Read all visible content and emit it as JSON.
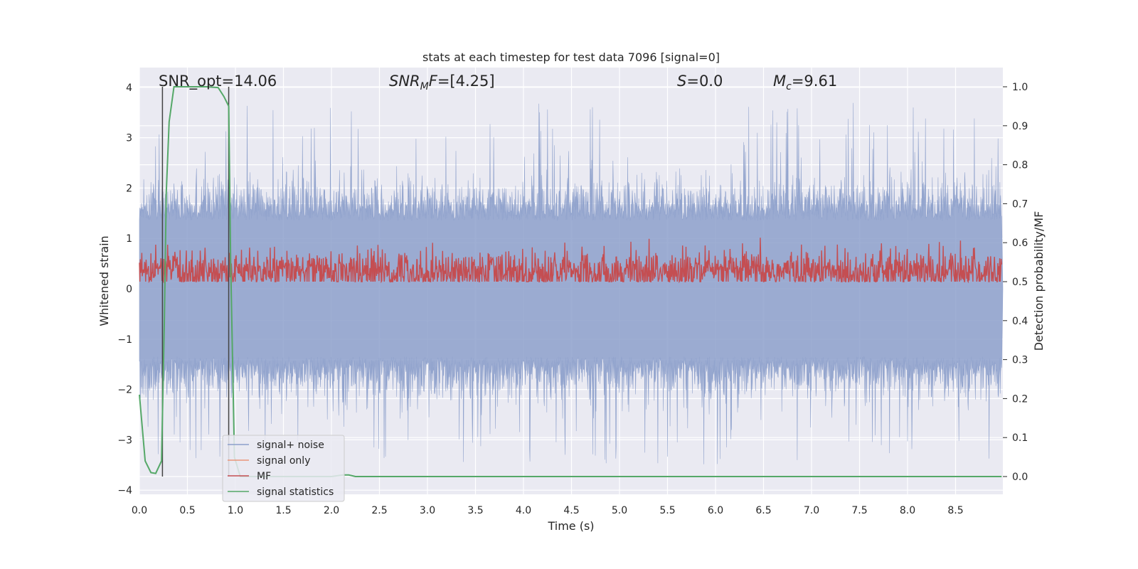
{
  "chart_data": {
    "type": "line",
    "title": "stats at each timestep for test data 7096 [signal=0]",
    "xlabel": "Time (s)",
    "ylabel": "Whitened strain",
    "y2label": "Detection probability/MF",
    "xlim": [
      0.0,
      8.98
    ],
    "ylim": [
      -4.25,
      4.2
    ],
    "y2lim": [
      -0.045,
      1.045
    ],
    "xticks": [
      "0.0",
      "0.5",
      "1.0",
      "1.5",
      "2.0",
      "2.5",
      "3.0",
      "3.5",
      "4.0",
      "4.5",
      "5.0",
      "5.5",
      "6.0",
      "6.5",
      "7.0",
      "7.5",
      "8.0",
      "8.5"
    ],
    "yticks": [
      "4",
      "3",
      "2",
      "1",
      "0",
      "−1",
      "−2",
      "−3",
      "−4"
    ],
    "y2ticks": [
      "1.0",
      "0.9",
      "0.8",
      "0.7",
      "0.6",
      "0.5",
      "0.4",
      "0.3",
      "0.2",
      "0.1",
      "0.0"
    ],
    "annotations": {
      "snr_opt": "SNR_opt=14.06",
      "snr_mf": "=[4.25]",
      "snr_mf_label": "SNR",
      "snr_mf_sub": "M",
      "snr_mf_suffix": "F",
      "s_val": "=0.0",
      "s_label": "S",
      "mc_val": "=9.61",
      "mc_label": "M",
      "mc_sub": "c"
    },
    "vlines": [
      0.24,
      0.93
    ],
    "series": [
      {
        "name": "signal+ noise",
        "color": "#8da0cb",
        "axis": "left",
        "style": "dense noise, envelope approx ±2 with spikes to ±4"
      },
      {
        "name": "signal only",
        "color": "#e9967a",
        "axis": "left"
      },
      {
        "name": "MF",
        "color": "#c44e52",
        "axis": "right",
        "style": "noise between 0.5 and 0.65"
      },
      {
        "name": "signal statistics",
        "color": "#55a868",
        "axis": "right",
        "x": [
          0.0,
          0.06,
          0.12,
          0.17,
          0.23,
          0.26,
          0.28,
          0.31,
          0.36,
          0.42,
          0.55,
          0.7,
          0.82,
          0.88,
          0.93,
          0.95,
          0.99,
          1.05,
          1.2,
          1.5,
          2.0,
          2.12,
          2.18,
          2.25,
          2.4,
          3.0,
          5.0,
          7.0,
          8.98
        ],
        "y": [
          0.21,
          0.04,
          0.01,
          0.008,
          0.04,
          0.4,
          0.73,
          0.91,
          1.0,
          1.0,
          1.0,
          1.0,
          0.998,
          0.975,
          0.95,
          0.55,
          0.05,
          0.0,
          0.0,
          0.0,
          0.0,
          0.004,
          0.004,
          0.0,
          0.0,
          0.0,
          0.0,
          0.0,
          0.0
        ]
      }
    ],
    "legend": "lower-left",
    "grid": true
  }
}
